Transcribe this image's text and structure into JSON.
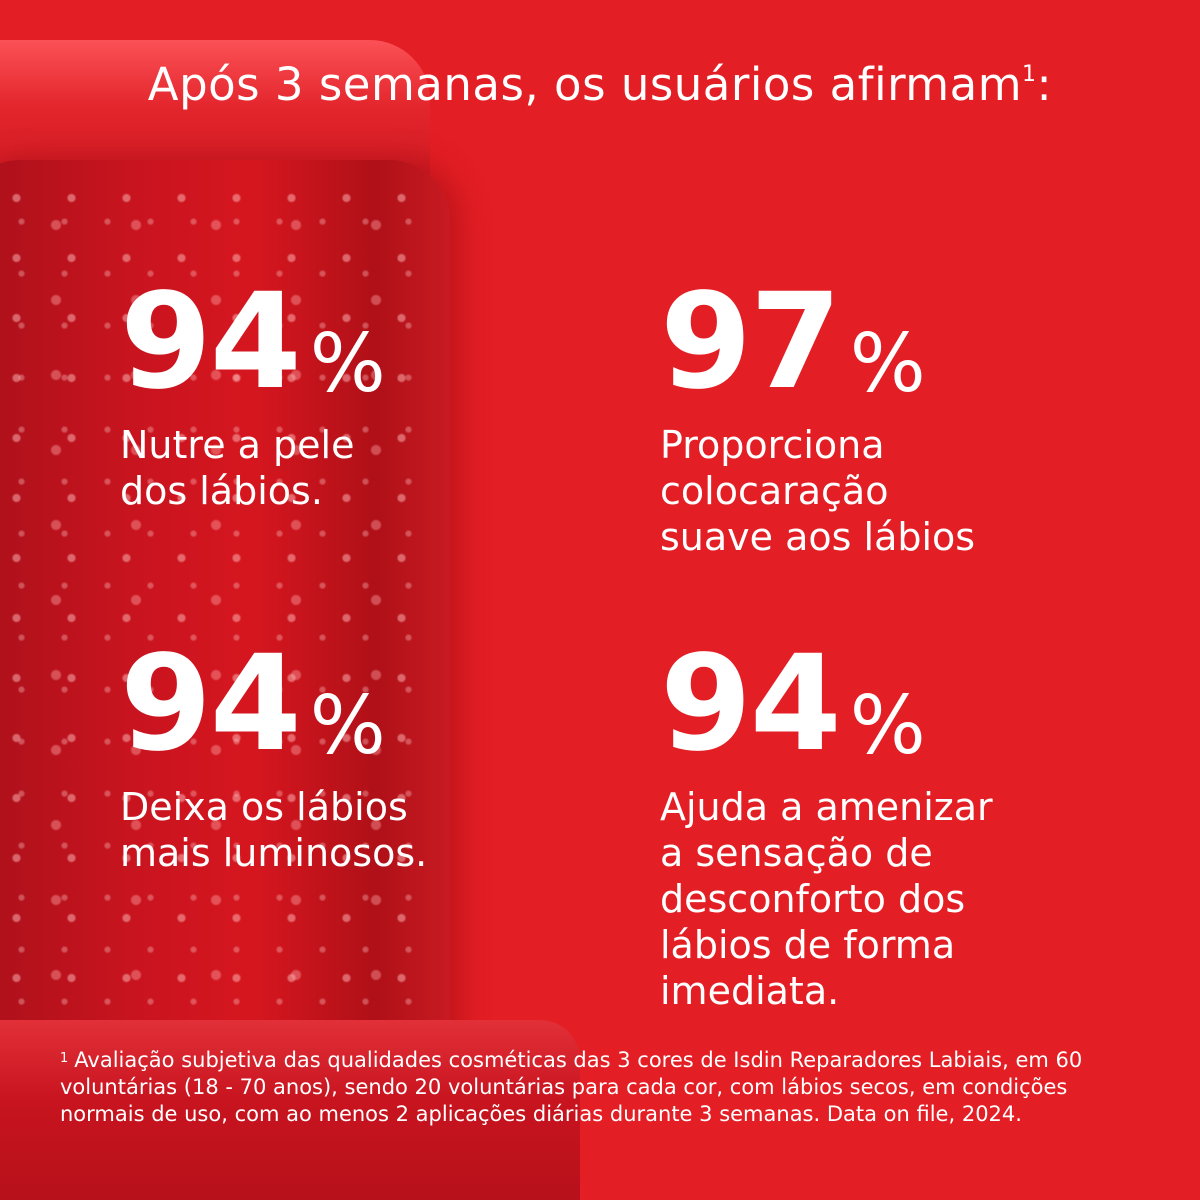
{
  "colors": {
    "background": "#e31e24",
    "text": "#ffffff"
  },
  "header": {
    "title": "Após 3 semanas, os usuários afirmam",
    "sup": "1",
    "suffix": ":"
  },
  "stats": [
    {
      "value": "94",
      "unit": "%",
      "description": "Nutre a pele\ndos lábios."
    },
    {
      "value": "97",
      "unit": "%",
      "description": "Proporciona\ncolocaração\nsuave aos lábios"
    },
    {
      "value": "94",
      "unit": "%",
      "description": "Deixa os lábios\nmais luminosos."
    },
    {
      "value": "94",
      "unit": "%",
      "description": "Ajuda a amenizar\na sensação de\ndesconforto dos\nlábios de forma\nimediata."
    }
  ],
  "footnote": {
    "marker": "1",
    "text": "Avaliação subjetiva das qualidades cosméticas das 3 cores de Isdin Reparadores Labiais, em 60 voluntárias (18 - 70 anos), sendo 20 voluntárias para cada cor, com lábios secos, em condições normais de uso, com ao menos 2 aplicações diárias durante 3 semanas. Data on file, 2024."
  }
}
